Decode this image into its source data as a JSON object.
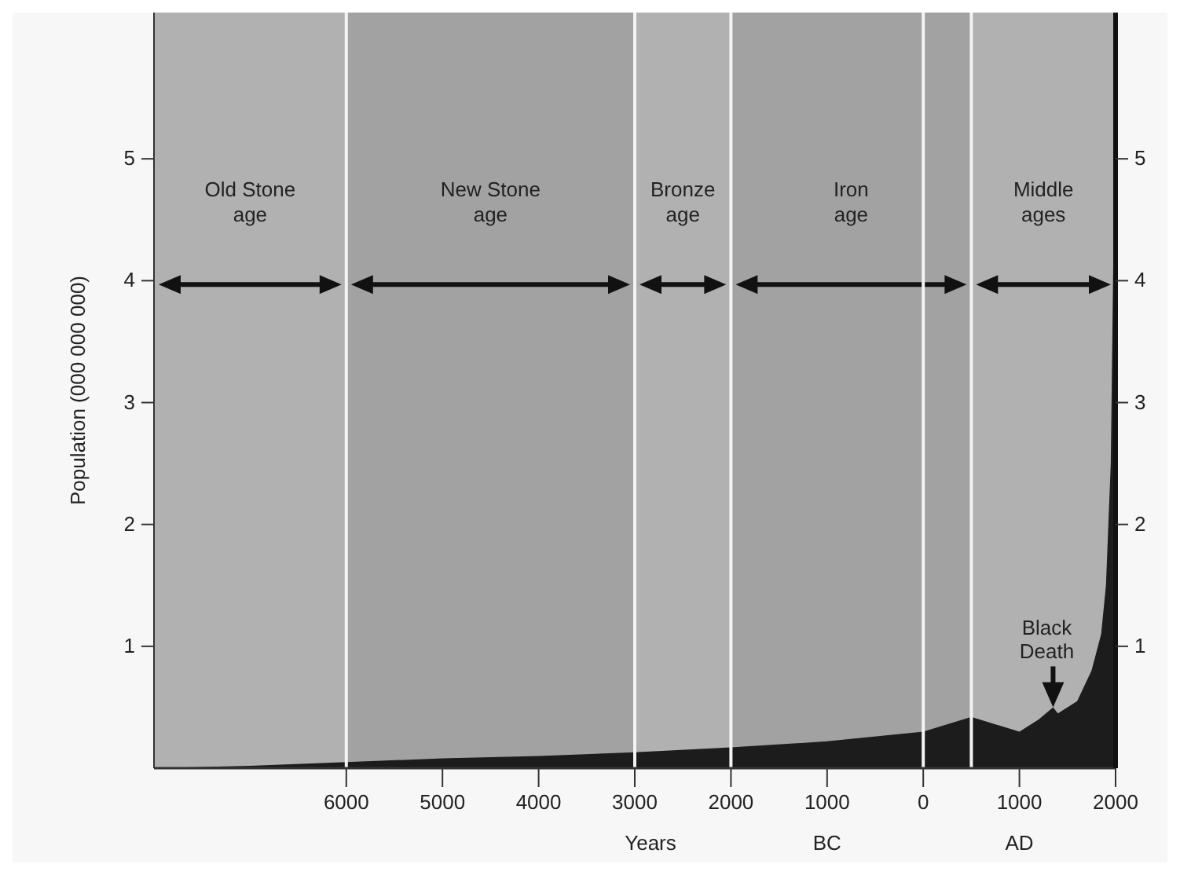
{
  "chart_data": {
    "type": "area",
    "xlabel": "Years",
    "ylabel": "Population (000 000 000)",
    "x": [
      -8000,
      -7000,
      -6000,
      -5000,
      -4000,
      -3000,
      -2000,
      -1000,
      0,
      500,
      1000,
      1200,
      1350,
      1400,
      1600,
      1750,
      1850,
      1900,
      1950,
      1980,
      2000
    ],
    "series": [
      {
        "color": "#1c1c1c",
        "values": [
          0.0,
          0.02,
          0.05,
          0.08,
          0.1,
          0.13,
          0.17,
          0.22,
          0.3,
          0.42,
          0.3,
          0.4,
          0.5,
          0.45,
          0.55,
          0.8,
          1.1,
          1.5,
          2.5,
          4.4,
          5.9
        ]
      }
    ],
    "xlim": [
      -8000,
      2000
    ],
    "xticks": [
      {
        "value": -6000,
        "label": "6000"
      },
      {
        "value": -5000,
        "label": "5000"
      },
      {
        "value": -4000,
        "label": "4000"
      },
      {
        "value": -3000,
        "label": "3000"
      },
      {
        "value": -2000,
        "label": "2000"
      },
      {
        "value": -1000,
        "label": "1000"
      },
      0,
      1000,
      2000
    ],
    "ylim": [
      0,
      6.2
    ],
    "yticks": [
      1,
      2,
      3,
      4,
      5
    ],
    "y2lim": [
      0,
      6.2
    ],
    "y2ticks": [
      1,
      2,
      3,
      4,
      5
    ],
    "ref_lines": [
      {
        "axis": "x",
        "value": -6000,
        "color": "#f4f4f4"
      },
      {
        "axis": "x",
        "value": -3000,
        "color": "#f4f4f4"
      },
      {
        "axis": "x",
        "value": -2000,
        "color": "#f4f4f4"
      },
      {
        "axis": "x",
        "value": 0,
        "color": "#f4f4f4"
      },
      {
        "axis": "x",
        "value": 500,
        "color": "#f4f4f4"
      }
    ],
    "bands": [
      {
        "axis": "x",
        "from": -8000,
        "to": -6000,
        "label": "Old Stone age",
        "color": "#b1b1b1"
      },
      {
        "axis": "x",
        "from": -6000,
        "to": -3000,
        "label": "New Stone age",
        "color": "#a2a2a2"
      },
      {
        "axis": "x",
        "from": -3000,
        "to": -2000,
        "label": "Bronze age",
        "color": "#b1b1b1"
      },
      {
        "axis": "x",
        "from": -2000,
        "to": 500,
        "label": "Iron age",
        "color": "#a2a2a2"
      },
      {
        "axis": "x",
        "from": 500,
        "to": 2000,
        "label": "Middle ages",
        "color": "#b1b1b1"
      }
    ],
    "annotations": [
      {
        "text": "Black Death",
        "x": 1350,
        "y": 0.5
      },
      "BC",
      "AD"
    ]
  }
}
